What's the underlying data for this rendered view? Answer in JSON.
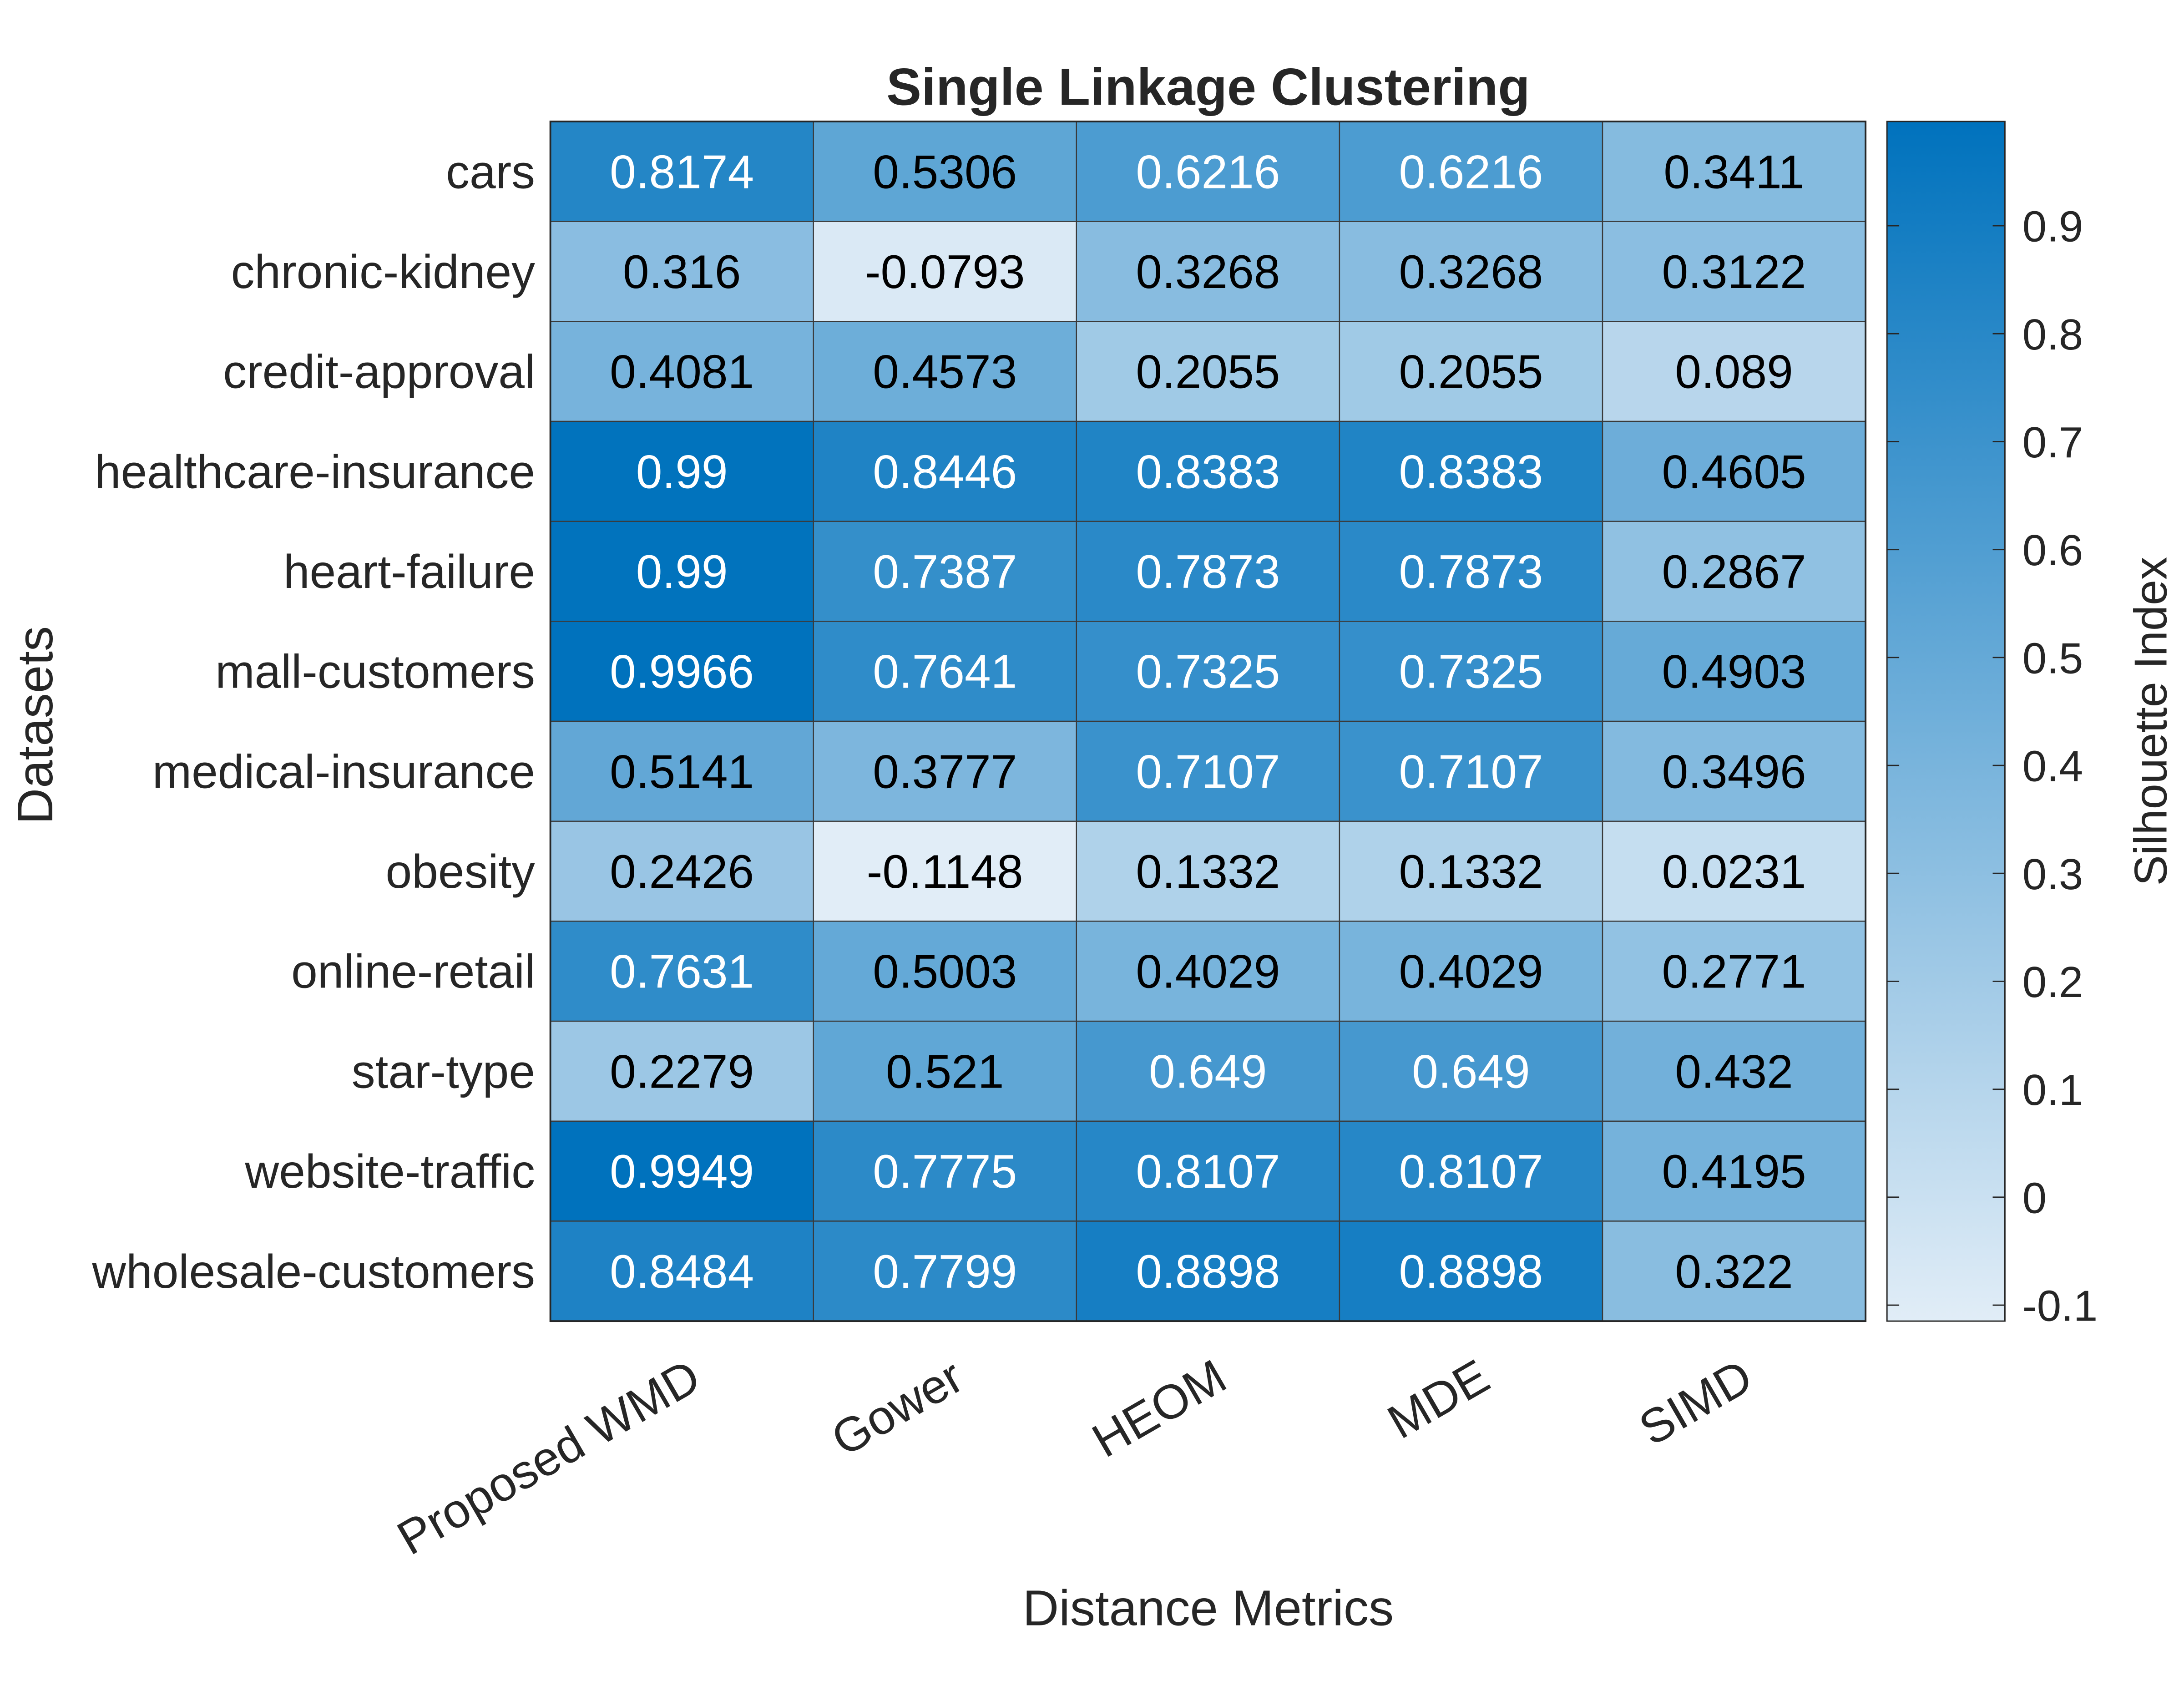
{
  "chart_data": {
    "type": "heatmap",
    "title": "Single Linkage Clustering",
    "xlabel": "Distance Metrics",
    "ylabel": "Datasets",
    "colorbar_label": "Silhouette Index",
    "x_categories": [
      "Proposed WMD",
      "Gower",
      "HEOM",
      "MDE",
      "SIMD"
    ],
    "y_categories": [
      "cars",
      "chronic-kidney",
      "credit-approval",
      "healthcare-insurance",
      "heart-failure",
      "mall-customers",
      "medical-insurance",
      "obesity",
      "online-retail",
      "star-type",
      "website-traffic",
      "wholesale-customers"
    ],
    "values": [
      [
        "0.8174",
        "0.5306",
        "0.6216",
        "0.6216",
        "0.3411"
      ],
      [
        "0.316",
        "-0.0793",
        "0.3268",
        "0.3268",
        "0.3122"
      ],
      [
        "0.4081",
        "0.4573",
        "0.2055",
        "0.2055",
        "0.089"
      ],
      [
        "0.99",
        "0.8446",
        "0.8383",
        "0.8383",
        "0.4605"
      ],
      [
        "0.99",
        "0.7387",
        "0.7873",
        "0.7873",
        "0.2867"
      ],
      [
        "0.9966",
        "0.7641",
        "0.7325",
        "0.7325",
        "0.4903"
      ],
      [
        "0.5141",
        "0.3777",
        "0.7107",
        "0.7107",
        "0.3496"
      ],
      [
        "0.2426",
        "-0.1148",
        "0.1332",
        "0.1332",
        "0.0231"
      ],
      [
        "0.7631",
        "0.5003",
        "0.4029",
        "0.4029",
        "0.2771"
      ],
      [
        "0.2279",
        "0.521",
        "0.649",
        "0.649",
        "0.432"
      ],
      [
        "0.9949",
        "0.7775",
        "0.8107",
        "0.8107",
        "0.4195"
      ],
      [
        "0.8484",
        "0.7799",
        "0.8898",
        "0.8898",
        "0.322"
      ]
    ],
    "colorbar_range": [
      -0.1148,
      0.9966
    ],
    "colorbar_ticks": [
      "-0.1",
      "0",
      "0.1",
      "0.2",
      "0.3",
      "0.4",
      "0.5",
      "0.6",
      "0.7",
      "0.8",
      "0.9"
    ],
    "color_low": "#e1edf7",
    "color_high": "#0072bd",
    "text_color_dark": "#000000",
    "text_color_light": "#ffffff",
    "legend_placement": "right",
    "grid": true
  }
}
